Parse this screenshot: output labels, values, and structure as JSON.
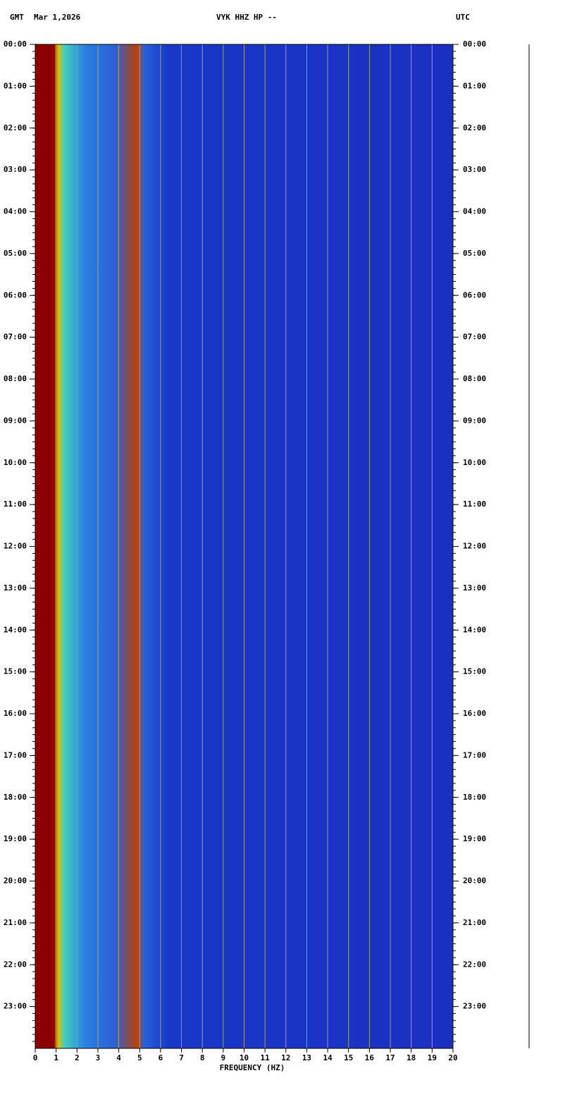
{
  "chart_data": {
    "type": "spectrogram",
    "title": "VYK HHZ HP --",
    "left_label": "GMT",
    "date": "Mar 1,2026",
    "right_label": "UTC",
    "xlabel": "FREQUENCY (HZ)",
    "xlim": [
      0,
      20
    ],
    "xticks": [
      0,
      1,
      2,
      3,
      4,
      5,
      6,
      7,
      8,
      9,
      10,
      11,
      12,
      13,
      14,
      15,
      16,
      17,
      18,
      19,
      20
    ],
    "ylim": [
      0,
      24
    ],
    "yticks": [
      {
        "value": 0,
        "label": "00:00"
      },
      {
        "value": 1,
        "label": "01:00"
      },
      {
        "value": 2,
        "label": "02:00"
      },
      {
        "value": 3,
        "label": "03:00"
      },
      {
        "value": 4,
        "label": "04:00"
      },
      {
        "value": 5,
        "label": "05:00"
      },
      {
        "value": 6,
        "label": "06:00"
      },
      {
        "value": 7,
        "label": "07:00"
      },
      {
        "value": 8,
        "label": "08:00"
      },
      {
        "value": 9,
        "label": "09:00"
      },
      {
        "value": 10,
        "label": "10:00"
      },
      {
        "value": 11,
        "label": "11:00"
      },
      {
        "value": 12,
        "label": "12:00"
      },
      {
        "value": 13,
        "label": "13:00"
      },
      {
        "value": 14,
        "label": "14:00"
      },
      {
        "value": 15,
        "label": "15:00"
      },
      {
        "value": 16,
        "label": "16:00"
      },
      {
        "value": 17,
        "label": "17:00"
      },
      {
        "value": 18,
        "label": "18:00"
      },
      {
        "value": 19,
        "label": "19:00"
      },
      {
        "value": 20,
        "label": "20:00"
      },
      {
        "value": 21,
        "label": "21:00"
      },
      {
        "value": 22,
        "label": "22:00"
      },
      {
        "value": 23,
        "label": "23:00"
      }
    ],
    "grid": true,
    "grid_color": "#a0a080"
  }
}
